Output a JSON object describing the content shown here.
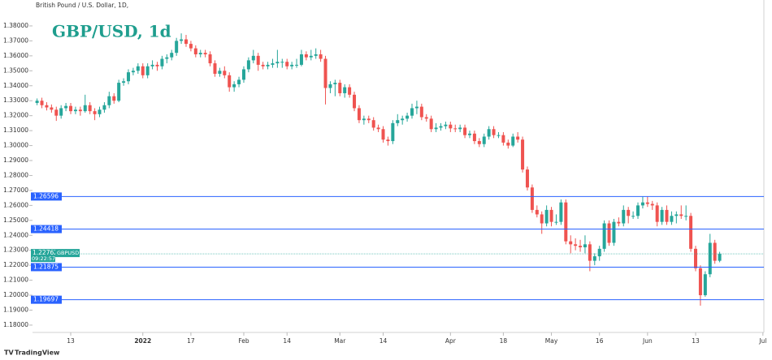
{
  "chart_data": {
    "type": "candlestick",
    "subtitle": "British Pound / U.S. Dollar, 1D,",
    "title": "GBP/USD, 1d",
    "symbol": "GBPUSD",
    "countdown": "09:22:57",
    "brand": "TradingView",
    "up_color": "#26a69a",
    "down_color": "#ef5350",
    "level_color": "#2962ff",
    "ylim": [
      1.1751,
      1.3919
    ],
    "yticks": [
      {
        "value": 1.18,
        "label": "1.18000"
      },
      {
        "value": 1.19,
        "label": "1.19000"
      },
      {
        "value": 1.2,
        "label": "1.20000"
      },
      {
        "value": 1.21,
        "label": "1.21000"
      },
      {
        "value": 1.22,
        "label": "1.22000"
      },
      {
        "value": 1.23,
        "label": "1.23000"
      },
      {
        "value": 1.24,
        "label": "1.24000"
      },
      {
        "value": 1.25,
        "label": "1.25000"
      },
      {
        "value": 1.26,
        "label": "1.26000"
      },
      {
        "value": 1.27,
        "label": "1.27000"
      },
      {
        "value": 1.28,
        "label": "1.28000"
      },
      {
        "value": 1.29,
        "label": "1.29000"
      },
      {
        "value": 1.3,
        "label": "1.30000"
      },
      {
        "value": 1.31,
        "label": "1.31000"
      },
      {
        "value": 1.32,
        "label": "1.32000"
      },
      {
        "value": 1.33,
        "label": "1.33000"
      },
      {
        "value": 1.34,
        "label": "1.34000"
      },
      {
        "value": 1.35,
        "label": "1.35000"
      },
      {
        "value": 1.36,
        "label": "1.36000"
      },
      {
        "value": 1.37,
        "label": "1.37000"
      },
      {
        "value": 1.38,
        "label": "1.38000"
      }
    ],
    "xlim": [
      -0.95,
      151.2
    ],
    "xticks": [
      {
        "value": 7,
        "label": "13"
      },
      {
        "value": 22,
        "label": "2022"
      },
      {
        "value": 32,
        "label": "17"
      },
      {
        "value": 43,
        "label": "Feb"
      },
      {
        "value": 52,
        "label": "14"
      },
      {
        "value": 63,
        "label": "Mar"
      },
      {
        "value": 72,
        "label": "14"
      },
      {
        "value": 86,
        "label": "Apr"
      },
      {
        "value": 97,
        "label": "18"
      },
      {
        "value": 107,
        "label": "May"
      },
      {
        "value": 117,
        "label": "16"
      },
      {
        "value": 127,
        "label": "Jun"
      },
      {
        "value": 137,
        "label": "13"
      },
      {
        "value": 151,
        "label": "Jul"
      }
    ],
    "levels": [
      1.26596,
      1.24418,
      1.21875,
      1.19697
    ],
    "ohlc": [
      [
        1.3285,
        1.3315,
        1.327,
        1.33
      ],
      [
        1.33,
        1.332,
        1.325,
        1.327
      ],
      [
        1.327,
        1.329,
        1.3235,
        1.3255
      ],
      [
        1.3255,
        1.3275,
        1.322,
        1.324
      ],
      [
        1.324,
        1.326,
        1.3165,
        1.32
      ],
      [
        1.32,
        1.327,
        1.318,
        1.325
      ],
      [
        1.325,
        1.3285,
        1.323,
        1.3265
      ],
      [
        1.3265,
        1.3285,
        1.321,
        1.323
      ],
      [
        1.323,
        1.326,
        1.321,
        1.324
      ],
      [
        1.324,
        1.326,
        1.32,
        1.323
      ],
      [
        1.323,
        1.334,
        1.322,
        1.327
      ],
      [
        1.327,
        1.329,
        1.321,
        1.323
      ],
      [
        1.323,
        1.325,
        1.317,
        1.321
      ],
      [
        1.321,
        1.326,
        1.319,
        1.324
      ],
      [
        1.324,
        1.329,
        1.322,
        1.327
      ],
      [
        1.327,
        1.336,
        1.325,
        1.333
      ],
      [
        1.333,
        1.335,
        1.328,
        1.33
      ],
      [
        1.33,
        1.344,
        1.329,
        1.342
      ],
      [
        1.342,
        1.345,
        1.34,
        1.343
      ],
      [
        1.343,
        1.351,
        1.341,
        1.349
      ],
      [
        1.349,
        1.352,
        1.347,
        1.35
      ],
      [
        1.35,
        1.355,
        1.348,
        1.353
      ],
      [
        1.353,
        1.355,
        1.345,
        1.347
      ],
      [
        1.347,
        1.355,
        1.345,
        1.353
      ],
      [
        1.353,
        1.357,
        1.351,
        1.354
      ],
      [
        1.354,
        1.356,
        1.35,
        1.353
      ],
      [
        1.353,
        1.36,
        1.351,
        1.358
      ],
      [
        1.358,
        1.361,
        1.355,
        1.359
      ],
      [
        1.359,
        1.364,
        1.357,
        1.362
      ],
      [
        1.362,
        1.372,
        1.36,
        1.37
      ],
      [
        1.37,
        1.375,
        1.368,
        1.371
      ],
      [
        1.371,
        1.374,
        1.366,
        1.368
      ],
      [
        1.368,
        1.37,
        1.363,
        1.365
      ],
      [
        1.365,
        1.367,
        1.359,
        1.361
      ],
      [
        1.361,
        1.364,
        1.359,
        1.362
      ],
      [
        1.362,
        1.364,
        1.359,
        1.361
      ],
      [
        1.361,
        1.363,
        1.353,
        1.355
      ],
      [
        1.355,
        1.357,
        1.346,
        1.348
      ],
      [
        1.348,
        1.352,
        1.346,
        1.35
      ],
      [
        1.35,
        1.353,
        1.345,
        1.347
      ],
      [
        1.347,
        1.349,
        1.336,
        1.339
      ],
      [
        1.339,
        1.343,
        1.336,
        1.341
      ],
      [
        1.341,
        1.346,
        1.339,
        1.344
      ],
      [
        1.344,
        1.353,
        1.342,
        1.351
      ],
      [
        1.351,
        1.359,
        1.349,
        1.357
      ],
      [
        1.357,
        1.364,
        1.355,
        1.36
      ],
      [
        1.36,
        1.362,
        1.35,
        1.354
      ],
      [
        1.354,
        1.356,
        1.351,
        1.353
      ],
      [
        1.353,
        1.356,
        1.351,
        1.354
      ],
      [
        1.354,
        1.358,
        1.352,
        1.355
      ],
      [
        1.355,
        1.364,
        1.352,
        1.356
      ],
      [
        1.356,
        1.358,
        1.352,
        1.356
      ],
      [
        1.356,
        1.358,
        1.351,
        1.353
      ],
      [
        1.353,
        1.356,
        1.351,
        1.354
      ],
      [
        1.354,
        1.358,
        1.352,
        1.354
      ],
      [
        1.354,
        1.364,
        1.353,
        1.361
      ],
      [
        1.361,
        1.363,
        1.357,
        1.359
      ],
      [
        1.359,
        1.364,
        1.357,
        1.36
      ],
      [
        1.36,
        1.365,
        1.358,
        1.361
      ],
      [
        1.361,
        1.364,
        1.356,
        1.358
      ],
      [
        1.358,
        1.36,
        1.3275,
        1.3385
      ],
      [
        1.3385,
        1.343,
        1.335,
        1.341
      ],
      [
        1.341,
        1.344,
        1.333,
        1.342
      ],
      [
        1.342,
        1.344,
        1.333,
        1.335
      ],
      [
        1.335,
        1.341,
        1.332,
        1.339
      ],
      [
        1.339,
        1.341,
        1.332,
        1.334
      ],
      [
        1.334,
        1.336,
        1.323,
        1.325
      ],
      [
        1.325,
        1.327,
        1.315,
        1.317
      ],
      [
        1.317,
        1.32,
        1.314,
        1.318
      ],
      [
        1.318,
        1.32,
        1.315,
        1.317
      ],
      [
        1.317,
        1.319,
        1.31,
        1.312
      ],
      [
        1.312,
        1.314,
        1.309,
        1.311
      ],
      [
        1.311,
        1.313,
        1.302,
        1.304
      ],
      [
        1.304,
        1.306,
        1.3,
        1.303
      ],
      [
        1.303,
        1.317,
        1.301,
        1.315
      ],
      [
        1.315,
        1.321,
        1.313,
        1.317
      ],
      [
        1.317,
        1.32,
        1.314,
        1.318
      ],
      [
        1.318,
        1.322,
        1.316,
        1.32
      ],
      [
        1.32,
        1.328,
        1.318,
        1.325
      ],
      [
        1.325,
        1.33,
        1.321,
        1.326
      ],
      [
        1.326,
        1.328,
        1.317,
        1.319
      ],
      [
        1.319,
        1.321,
        1.316,
        1.318
      ],
      [
        1.318,
        1.32,
        1.309,
        1.311
      ],
      [
        1.311,
        1.315,
        1.309,
        1.312
      ],
      [
        1.312,
        1.315,
        1.31,
        1.313
      ],
      [
        1.313,
        1.316,
        1.311,
        1.314
      ],
      [
        1.314,
        1.316,
        1.309,
        1.3115
      ],
      [
        1.3115,
        1.314,
        1.309,
        1.311
      ],
      [
        1.311,
        1.314,
        1.309,
        1.312
      ],
      [
        1.312,
        1.314,
        1.305,
        1.307
      ],
      [
        1.307,
        1.31,
        1.305,
        1.308
      ],
      [
        1.308,
        1.31,
        1.301,
        1.303
      ],
      [
        1.303,
        1.305,
        1.299,
        1.301
      ],
      [
        1.301,
        1.308,
        1.299,
        1.306
      ],
      [
        1.306,
        1.313,
        1.304,
        1.311
      ],
      [
        1.311,
        1.313,
        1.305,
        1.307
      ],
      [
        1.307,
        1.309,
        1.305,
        1.307
      ],
      [
        1.307,
        1.309,
        1.3,
        1.302
      ],
      [
        1.302,
        1.304,
        1.298,
        1.3
      ],
      [
        1.3,
        1.308,
        1.299,
        1.306
      ],
      [
        1.306,
        1.309,
        1.302,
        1.304
      ],
      [
        1.304,
        1.306,
        1.282,
        1.284
      ],
      [
        1.284,
        1.286,
        1.27,
        1.272
      ],
      [
        1.272,
        1.274,
        1.255,
        1.257
      ],
      [
        1.257,
        1.26,
        1.252,
        1.254
      ],
      [
        1.254,
        1.256,
        1.241,
        1.248
      ],
      [
        1.248,
        1.26,
        1.246,
        1.257
      ],
      [
        1.257,
        1.259,
        1.246,
        1.249
      ],
      [
        1.249,
        1.254,
        1.247,
        1.249
      ],
      [
        1.249,
        1.264,
        1.247,
        1.262
      ],
      [
        1.262,
        1.264,
        1.234,
        1.236
      ],
      [
        1.236,
        1.24,
        1.228,
        1.234
      ],
      [
        1.234,
        1.238,
        1.23,
        1.233
      ],
      [
        1.233,
        1.237,
        1.229,
        1.232
      ],
      [
        1.232,
        1.24,
        1.228,
        1.234
      ],
      [
        1.234,
        1.236,
        1.216,
        1.223
      ],
      [
        1.223,
        1.228,
        1.22,
        1.226
      ],
      [
        1.226,
        1.233,
        1.223,
        1.231
      ],
      [
        1.231,
        1.25,
        1.229,
        1.248
      ],
      [
        1.248,
        1.25,
        1.233,
        1.235
      ],
      [
        1.235,
        1.251,
        1.233,
        1.249
      ],
      [
        1.249,
        1.252,
        1.246,
        1.248
      ],
      [
        1.248,
        1.26,
        1.246,
        1.257
      ],
      [
        1.257,
        1.259,
        1.248,
        1.253
      ],
      [
        1.253,
        1.256,
        1.251,
        1.253
      ],
      [
        1.253,
        1.262,
        1.251,
        1.26
      ],
      [
        1.26,
        1.266,
        1.258,
        1.262
      ],
      [
        1.262,
        1.266,
        1.259,
        1.261
      ],
      [
        1.261,
        1.263,
        1.257,
        1.26
      ],
      [
        1.26,
        1.262,
        1.246,
        1.249
      ],
      [
        1.249,
        1.259,
        1.247,
        1.257
      ],
      [
        1.257,
        1.26,
        1.247,
        1.249
      ],
      [
        1.249,
        1.256,
        1.247,
        1.253
      ],
      [
        1.253,
        1.256,
        1.248,
        1.254
      ],
      [
        1.254,
        1.26,
        1.251,
        1.253
      ],
      [
        1.253,
        1.26,
        1.25,
        1.253
      ],
      [
        1.253,
        1.255,
        1.229,
        1.231
      ],
      [
        1.231,
        1.233,
        1.216,
        1.218
      ],
      [
        1.218,
        1.22,
        1.193,
        1.2
      ],
      [
        1.2,
        1.216,
        1.199,
        1.214
      ],
      [
        1.214,
        1.241,
        1.212,
        1.235
      ],
      [
        1.235,
        1.237,
        1.221,
        1.223
      ],
      [
        1.223,
        1.229,
        1.222,
        1.22762
      ]
    ]
  }
}
